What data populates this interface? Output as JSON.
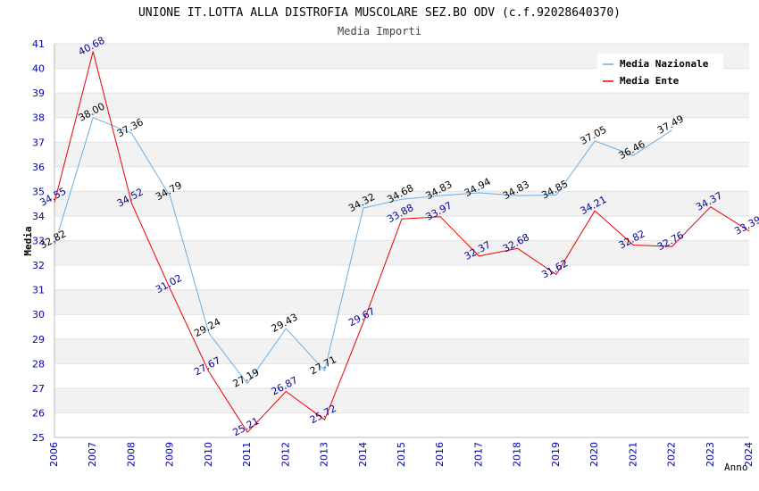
{
  "chart_data": {
    "type": "line",
    "title": "UNIONE IT.LOTTA ALLA DISTROFIA MUSCOLARE SEZ.BO ODV (c.f.92028640370)",
    "subtitle": "Media Importi",
    "xlabel": "Anno",
    "ylabel": "Media",
    "ylim": [
      25,
      41
    ],
    "yticks": [
      "25",
      "26",
      "27",
      "28",
      "29",
      "30",
      "31",
      "32",
      "33",
      "34",
      "35",
      "36",
      "37",
      "38",
      "39",
      "40",
      "41"
    ],
    "categories": [
      "2006",
      "2007",
      "2008",
      "2009",
      "2010",
      "2011",
      "2012",
      "2013",
      "2014",
      "2015",
      "2016",
      "2017",
      "2018",
      "2019",
      "2020",
      "2021",
      "2022",
      "2023",
      "2024"
    ],
    "legend_position": "top-right",
    "grid": "horizontal bands",
    "series": [
      {
        "name": "Media Nazionale",
        "color": "#6aaee6",
        "label_color": "#000000",
        "values": [
          32.82,
          38.0,
          37.36,
          34.79,
          29.24,
          27.19,
          29.43,
          27.71,
          34.32,
          34.68,
          34.83,
          34.94,
          34.83,
          34.85,
          37.05,
          36.46,
          37.49,
          null,
          null
        ],
        "labels": [
          "32.82",
          "38.00",
          "37.36",
          "34.79",
          "29.24",
          "27.19",
          "29.43",
          "27.71",
          "34.32",
          "34.68",
          "34.83",
          "34.94",
          "34.83",
          "34.85",
          "37.05",
          "36.46",
          "37.49",
          null,
          null
        ]
      },
      {
        "name": "Media Ente",
        "color": "#ee0000",
        "label_color": "#000099",
        "values": [
          34.55,
          40.68,
          34.52,
          31.02,
          27.67,
          25.21,
          26.87,
          25.72,
          29.67,
          33.88,
          33.97,
          32.37,
          32.68,
          31.62,
          34.21,
          32.82,
          32.76,
          34.37,
          33.39
        ],
        "labels": [
          "34.55",
          "40.68",
          "34.52",
          "31.02",
          "27.67",
          "25.21",
          "26.87",
          "25.72",
          "29.67",
          "33.88",
          "33.97",
          "32.37",
          "32.68",
          "31.62",
          "34.21",
          "32.82",
          "32.76",
          "34.37",
          "33.39"
        ]
      }
    ]
  }
}
